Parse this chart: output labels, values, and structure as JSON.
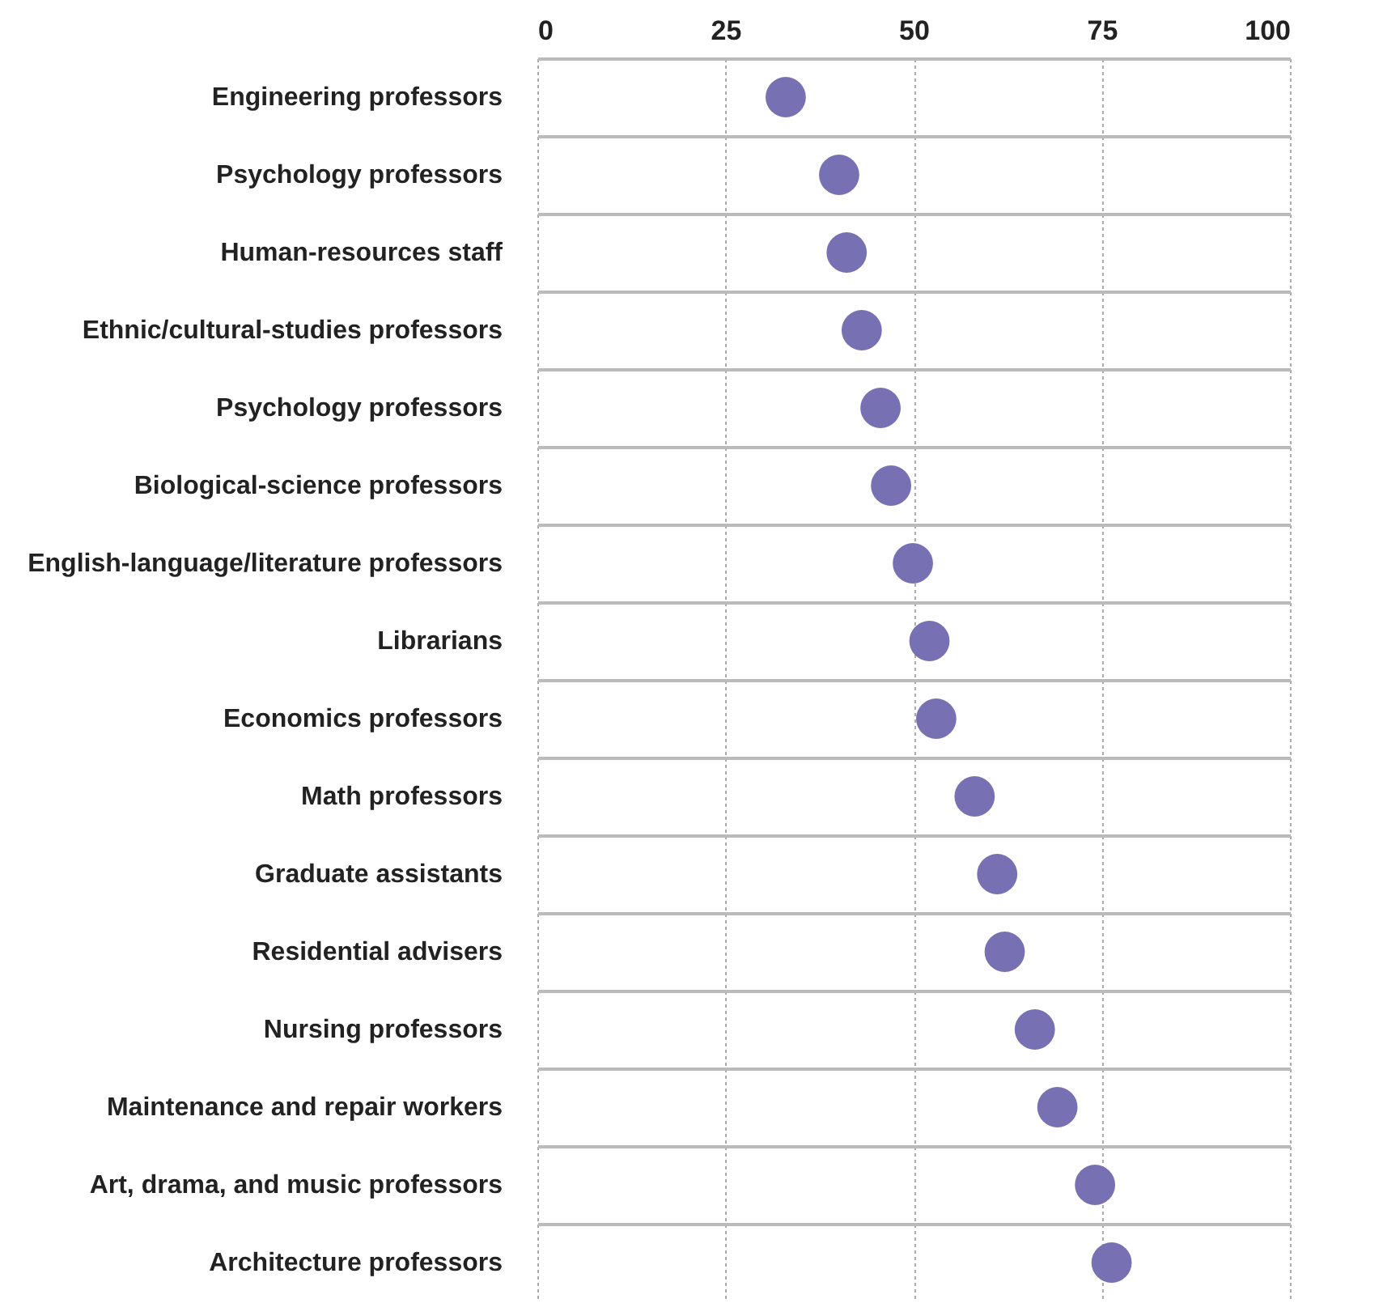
{
  "chart_data": {
    "type": "scatter",
    "orientation": "horizontal",
    "marker": "circle",
    "grid": true,
    "categories": [
      "Engineering professors",
      "Psychology professors",
      "Human-resources staff",
      "Ethnic/cultural-studies professors",
      "Psychology professors",
      "Biological-science professors",
      "English-language/literature professors",
      "Librarians",
      "Economics professors",
      "Math professors",
      "Graduate assistants",
      "Residential advisers",
      "Nursing professors",
      "Maintenance and repair workers",
      "Art, drama, and music professors",
      "Architecture professors"
    ],
    "values": [
      33.0,
      40.1,
      41.1,
      43.1,
      45.6,
      47.0,
      49.9,
      52.1,
      53.0,
      58.1,
      61.1,
      62.1,
      66.1,
      69.1,
      74.1,
      76.3
    ],
    "color": "#7771b3",
    "xlim": [
      0,
      100
    ],
    "xticks": [
      0,
      25,
      50,
      75,
      100
    ]
  }
}
